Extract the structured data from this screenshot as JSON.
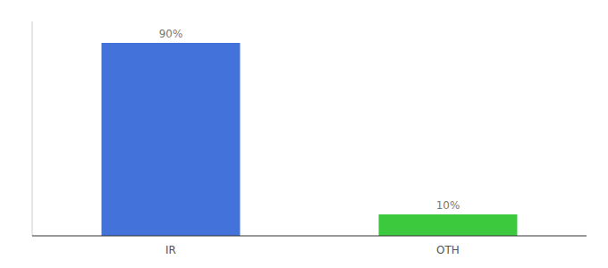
{
  "chart_data": {
    "type": "bar",
    "categories": [
      "IR",
      "OTH"
    ],
    "values": [
      90,
      10
    ],
    "value_labels": [
      "90%",
      "10%"
    ],
    "colors": [
      "#4472db",
      "#3dc93d"
    ],
    "ylim": [
      0,
      100
    ],
    "tick_labels": "x"
  }
}
